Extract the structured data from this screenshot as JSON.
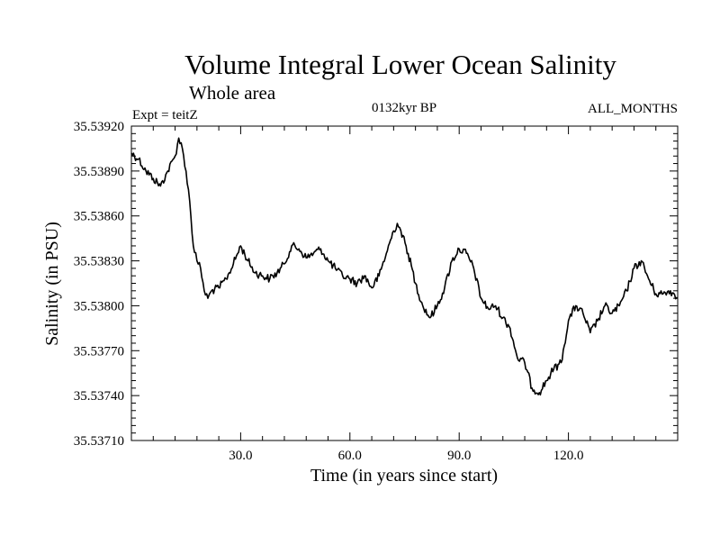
{
  "chart_data": {
    "type": "line",
    "title": "Volume Integral Lower Ocean Salinity",
    "subtitle": "Whole area",
    "annotations": {
      "left": "Expt = teitZ",
      "center": "0132kyr BP",
      "right": "ALL_MONTHS"
    },
    "xlabel": "Time (in years since start)",
    "ylabel": "Salinity (in PSU)",
    "xlim": [
      0,
      150
    ],
    "ylim": [
      35.5371,
      35.5392
    ],
    "x_ticks": [
      30,
      60,
      90,
      120
    ],
    "x_tick_labels": [
      "30.0",
      "60.0",
      "90.0",
      "120.0"
    ],
    "y_ticks": [
      35.5371,
      35.5374,
      35.5377,
      35.538,
      35.5383,
      35.5386,
      35.5389,
      35.5392
    ],
    "y_tick_labels": [
      "35.53710",
      "35.53740",
      "35.53770",
      "35.53800",
      "35.53830",
      "35.53860",
      "35.53890",
      "35.53920"
    ],
    "grid": false,
    "series": [
      {
        "name": "Salinity",
        "color": "#000000",
        "x": [
          0,
          2,
          4,
          6,
          8,
          10,
          12,
          13,
          14,
          15,
          16,
          17,
          18,
          19,
          20,
          21,
          22,
          24,
          26,
          28,
          30,
          32,
          34,
          36,
          38,
          40,
          42,
          44,
          46,
          48,
          50,
          52,
          54,
          56,
          58,
          60,
          62,
          64,
          66,
          68,
          70,
          72,
          73,
          74,
          76,
          78,
          80,
          82,
          84,
          86,
          88,
          90,
          92,
          94,
          96,
          98,
          100,
          102,
          104,
          106,
          108,
          110,
          112,
          114,
          116,
          118,
          120,
          122,
          124,
          126,
          128,
          130,
          132,
          134,
          136,
          138,
          140,
          142,
          144,
          146,
          148,
          150
        ],
        "values": [
          35.53902,
          35.53898,
          35.5389,
          35.53885,
          35.5388,
          35.5389,
          35.539,
          35.53912,
          35.53905,
          35.5389,
          35.5387,
          35.5384,
          35.5383,
          35.53825,
          35.5381,
          35.53805,
          35.5381,
          35.53812,
          35.53818,
          35.53828,
          35.5384,
          35.5383,
          35.53822,
          35.5382,
          35.53818,
          35.53822,
          35.53828,
          35.5384,
          35.53838,
          35.53832,
          35.53835,
          35.53838,
          35.5383,
          35.53825,
          35.5382,
          35.53818,
          35.53815,
          35.5382,
          35.53812,
          35.5382,
          35.53835,
          35.5385,
          35.53855,
          35.5385,
          35.53835,
          35.53815,
          35.538,
          35.53792,
          35.538,
          35.53812,
          35.5383,
          35.53838,
          35.53835,
          35.53825,
          35.53805,
          35.53798,
          35.538,
          35.53792,
          35.53785,
          35.53765,
          35.53762,
          35.53745,
          35.53742,
          35.5375,
          35.53758,
          35.53762,
          35.5379,
          35.538,
          35.53795,
          35.53782,
          35.5379,
          35.538,
          35.53795,
          35.538,
          35.5381,
          35.53825,
          35.5383,
          35.53818,
          35.53808,
          35.53808,
          35.5381,
          35.53805
        ]
      }
    ]
  }
}
